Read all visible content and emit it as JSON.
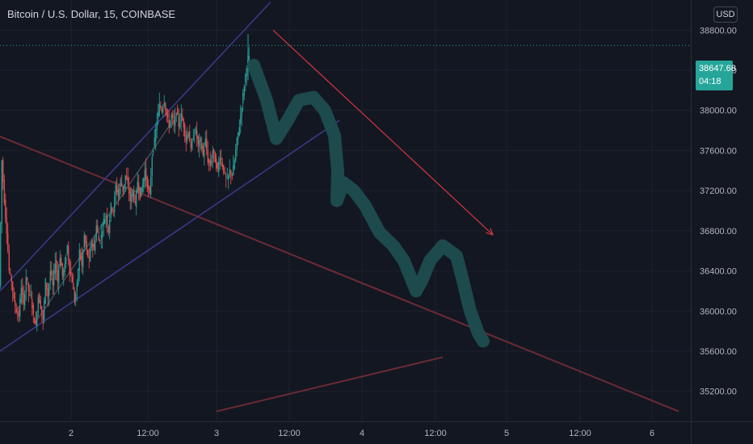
{
  "title": "Bitcoin / U.S. Dollar, 15, COINBASE",
  "currency_button": "USD",
  "price_tag": {
    "price": "38647.68",
    "countdown": "04:18"
  },
  "colors": {
    "background": "#131722",
    "grid": "#1e222d",
    "axis_text": "#b2b5be",
    "up_candle": "#26a69a",
    "down_candle": "#ef5350",
    "channel_line": "#3c3a8c",
    "trend_line": "#6b2b35",
    "projection_path": "#1e4d4f",
    "arrow": "#d6343c",
    "dotted_price": "#26a69a"
  },
  "chart_data": {
    "type": "candlestick",
    "symbol": "Bitcoin / U.S. Dollar",
    "interval": "15",
    "exchange": "COINBASE",
    "x_ticks": [
      "2",
      "12:00",
      "3",
      "12:00",
      "4",
      "12:00",
      "5",
      "12:00",
      "6"
    ],
    "y_ticks": [
      "35200.00",
      "35600.00",
      "36000.00",
      "36400.00",
      "36800.00",
      "37200.00",
      "37600.00",
      "38000.00",
      "38400.00",
      "38800.00"
    ],
    "y_tick_values": [
      35200,
      35600,
      36000,
      36400,
      36800,
      37200,
      37600,
      38000,
      38400,
      38800
    ],
    "ylim": [
      34900,
      39100
    ],
    "last_price": 38647.68,
    "candle_path": [
      [
        0,
        36250
      ],
      [
        3,
        37500
      ],
      [
        6,
        37100
      ],
      [
        9,
        36800
      ],
      [
        12,
        36400
      ],
      [
        15,
        36300
      ],
      [
        18,
        36100
      ],
      [
        21,
        36000
      ],
      [
        24,
        35950
      ],
      [
        27,
        36250
      ],
      [
        30,
        36050
      ],
      [
        33,
        36350
      ],
      [
        36,
        36200
      ],
      [
        39,
        36150
      ],
      [
        42,
        35950
      ],
      [
        45,
        35850
      ],
      [
        48,
        36150
      ],
      [
        51,
        36050
      ],
      [
        54,
        35900
      ],
      [
        57,
        36300
      ],
      [
        60,
        36150
      ],
      [
        63,
        36400
      ],
      [
        66,
        36250
      ],
      [
        69,
        36500
      ],
      [
        72,
        36300
      ],
      [
        75,
        36550
      ],
      [
        78,
        36350
      ],
      [
        81,
        36450
      ],
      [
        84,
        36650
      ],
      [
        87,
        36400
      ],
      [
        90,
        36300
      ],
      [
        93,
        36100
      ],
      [
        96,
        36250
      ],
      [
        99,
        36600
      ],
      [
        102,
        36450
      ],
      [
        105,
        36750
      ],
      [
        108,
        36600
      ],
      [
        111,
        36500
      ],
      [
        114,
        36700
      ],
      [
        117,
        36600
      ],
      [
        120,
        36850
      ],
      [
        123,
        36700
      ],
      [
        126,
        36750
      ],
      [
        129,
        36900
      ],
      [
        132,
        36950
      ],
      [
        135,
        36800
      ],
      [
        138,
        37050
      ],
      [
        141,
        37000
      ],
      [
        144,
        37250
      ],
      [
        147,
        37150
      ],
      [
        150,
        37300
      ],
      [
        153,
        37200
      ],
      [
        156,
        37350
      ],
      [
        159,
        37250
      ],
      [
        162,
        37100
      ],
      [
        165,
        37200
      ],
      [
        168,
        37050
      ],
      [
        171,
        37300
      ],
      [
        174,
        37150
      ],
      [
        177,
        37250
      ],
      [
        180,
        37400
      ],
      [
        183,
        37250
      ],
      [
        186,
        37150
      ],
      [
        189,
        37550
      ],
      [
        192,
        37700
      ],
      [
        195,
        37900
      ],
      [
        198,
        38050
      ],
      [
        201,
        38000
      ],
      [
        204,
        38100
      ],
      [
        207,
        37950
      ],
      [
        210,
        37850
      ],
      [
        213,
        37950
      ],
      [
        216,
        37850
      ],
      [
        219,
        38000
      ],
      [
        222,
        37850
      ],
      [
        225,
        37950
      ],
      [
        228,
        37850
      ],
      [
        231,
        37700
      ],
      [
        234,
        37800
      ],
      [
        237,
        37600
      ],
      [
        240,
        37750
      ],
      [
        243,
        37800
      ],
      [
        246,
        37650
      ],
      [
        249,
        37700
      ],
      [
        252,
        37550
      ],
      [
        255,
        37700
      ],
      [
        258,
        37500
      ],
      [
        261,
        37450
      ],
      [
        264,
        37600
      ],
      [
        267,
        37500
      ],
      [
        270,
        37400
      ],
      [
        273,
        37550
      ],
      [
        276,
        37450
      ],
      [
        279,
        37350
      ],
      [
        282,
        37300
      ],
      [
        285,
        37400
      ],
      [
        288,
        37350
      ],
      [
        291,
        37500
      ],
      [
        294,
        37700
      ],
      [
        297,
        37850
      ],
      [
        300,
        38050
      ],
      [
        303,
        38250
      ],
      [
        306,
        38450
      ],
      [
        309,
        38520
      ]
    ],
    "drawings": {
      "channel_upper": [
        [
          0,
          36200
        ],
        [
          335,
          39080
        ]
      ],
      "channel_lower": [
        [
          0,
          35600
        ],
        [
          420,
          37900
        ]
      ],
      "channel_mid": [
        [
          45,
          35900
        ],
        [
          210,
          37850
        ]
      ],
      "trend_line_descending": [
        [
          0,
          37740
        ],
        [
          840,
          35000
        ]
      ],
      "trend_line_ascending": [
        [
          268,
          35000
        ],
        [
          548,
          35540
        ]
      ],
      "arrow": [
        [
          338,
          38800
        ],
        [
          610,
          36760
        ]
      ],
      "projection_path": [
        [
          314,
          38450
        ],
        [
          330,
          38100
        ],
        [
          342,
          37720
        ],
        [
          356,
          37900
        ],
        [
          370,
          38100
        ],
        [
          388,
          38130
        ],
        [
          402,
          38000
        ],
        [
          414,
          37750
        ],
        [
          418,
          37400
        ],
        [
          417,
          37100
        ],
        [
          425,
          37280
        ],
        [
          438,
          37200
        ],
        [
          452,
          37050
        ],
        [
          470,
          36780
        ],
        [
          487,
          36650
        ],
        [
          500,
          36500
        ],
        [
          515,
          36200
        ],
        [
          522,
          36300
        ],
        [
          532,
          36500
        ],
        [
          548,
          36650
        ],
        [
          565,
          36550
        ],
        [
          573,
          36300
        ],
        [
          582,
          36000
        ],
        [
          592,
          35780
        ],
        [
          598,
          35700
        ]
      ]
    }
  }
}
